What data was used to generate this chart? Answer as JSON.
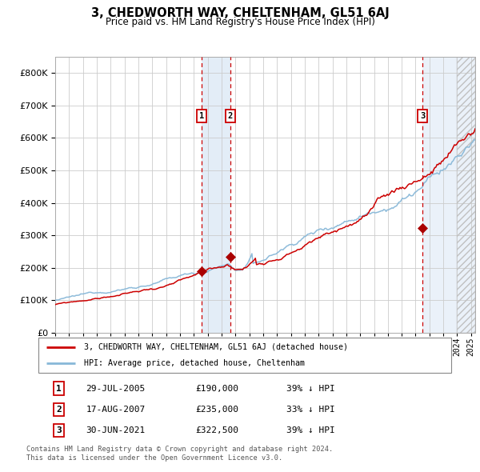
{
  "title": "3, CHEDWORTH WAY, CHELTENHAM, GL51 6AJ",
  "subtitle": "Price paid vs. HM Land Registry's House Price Index (HPI)",
  "ylim": [
    0,
    850000
  ],
  "yticks": [
    0,
    100000,
    200000,
    300000,
    400000,
    500000,
    600000,
    700000,
    800000
  ],
  "ytick_labels": [
    "£0",
    "£100K",
    "£200K",
    "£300K",
    "£400K",
    "£500K",
    "£600K",
    "£700K",
    "£800K"
  ],
  "background_color": "#ffffff",
  "plot_bg_color": "#ffffff",
  "grid_color": "#cccccc",
  "hpi_line_color": "#88b8d8",
  "price_line_color": "#cc0000",
  "sale1_date_num": 2005.57,
  "sale1_price": 190000,
  "sale1_label": "1",
  "sale1_date_str": "29-JUL-2005",
  "sale1_price_str": "£190,000",
  "sale1_pct": "39% ↓ HPI",
  "sale2_date_num": 2007.63,
  "sale2_price": 235000,
  "sale2_label": "2",
  "sale2_date_str": "17-AUG-2007",
  "sale2_price_str": "£235,000",
  "sale2_pct": "33% ↓ HPI",
  "sale3_date_num": 2021.5,
  "sale3_price": 322500,
  "sale3_label": "3",
  "sale3_date_str": "30-JUN-2021",
  "sale3_price_str": "£322,500",
  "sale3_pct": "39% ↓ HPI",
  "legend_label_price": "3, CHEDWORTH WAY, CHELTENHAM, GL51 6AJ (detached house)",
  "legend_label_hpi": "HPI: Average price, detached house, Cheltenham",
  "footer1": "Contains HM Land Registry data © Crown copyright and database right 2024.",
  "footer2": "This data is licensed under the Open Government Licence v3.0.",
  "xmin": 1995.0,
  "xmax": 2025.3,
  "shade_color": "#dce9f5",
  "hatch_color": "#cccccc"
}
